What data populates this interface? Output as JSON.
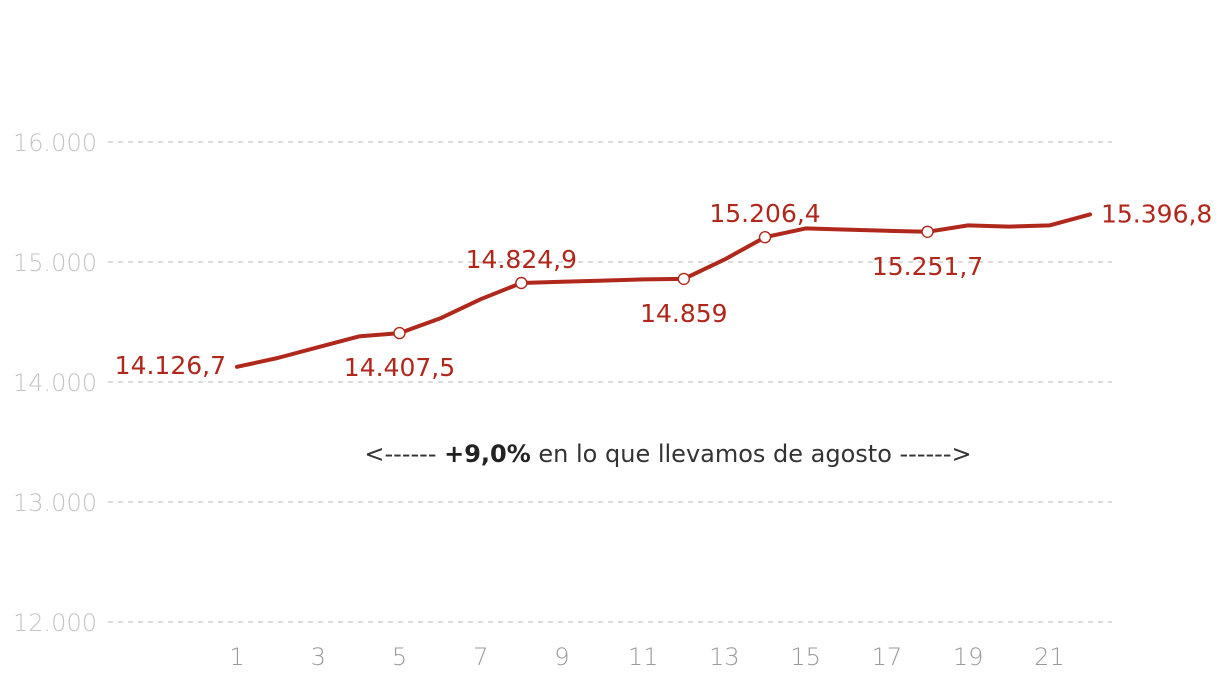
{
  "chart_data": {
    "type": "line",
    "title": "",
    "xlabel": "",
    "ylabel": "",
    "ylim": [
      12000,
      16000
    ],
    "xlim": [
      1,
      22
    ],
    "yticks": [
      12000,
      13000,
      14000,
      15000,
      16000
    ],
    "ytick_labels": [
      "12.000",
      "13.000",
      "14.000",
      "15.000",
      "16.000"
    ],
    "xticks": [
      1,
      3,
      5,
      7,
      9,
      11,
      13,
      15,
      17,
      19,
      21
    ],
    "xtick_labels": [
      "1",
      "3",
      "5",
      "7",
      "9",
      "11",
      "13",
      "15",
      "17",
      "19",
      "21"
    ],
    "grid": "horizontal-dashed",
    "colors": {
      "line": "#b0271b",
      "grid": "#c8c8c8",
      "ytick": "#c4c4c4",
      "xtick": "#9a9a9a"
    },
    "series": [
      {
        "x": [
          1,
          2,
          3,
          4,
          5,
          6,
          7,
          8,
          9,
          10,
          11,
          12,
          13,
          14,
          15,
          16,
          17,
          18,
          19,
          20,
          21,
          22
        ],
        "values": [
          14126.7,
          14200,
          14290,
          14380,
          14407.5,
          14530,
          14690,
          14824.9,
          14835,
          14845,
          14855,
          14859,
          15020,
          15206.4,
          15280,
          15270,
          15260,
          15251.7,
          15305,
          15295,
          15305,
          15396.8
        ]
      }
    ],
    "data_labels": [
      {
        "x": 1,
        "y": 14126.7,
        "text": "14.126,7",
        "position": "left",
        "marker": false
      },
      {
        "x": 5,
        "y": 14407.5,
        "text": "14.407,5",
        "position": "below",
        "marker": true
      },
      {
        "x": 8,
        "y": 14824.9,
        "text": "14.824,9",
        "position": "above",
        "marker": true
      },
      {
        "x": 12,
        "y": 14859,
        "text": "14.859",
        "position": "below",
        "marker": true
      },
      {
        "x": 14,
        "y": 15206.4,
        "text": "15.206,4",
        "position": "above",
        "marker": true
      },
      {
        "x": 18,
        "y": 15251.7,
        "text": "15.251,7",
        "position": "below",
        "marker": true
      },
      {
        "x": 22,
        "y": 15396.8,
        "text": "15.396,8",
        "position": "right",
        "marker": false
      }
    ],
    "annotation": {
      "prefix": "<------ ",
      "bold": "+9,0%",
      "suffix": " en lo que llevamos de agosto ------>"
    }
  }
}
